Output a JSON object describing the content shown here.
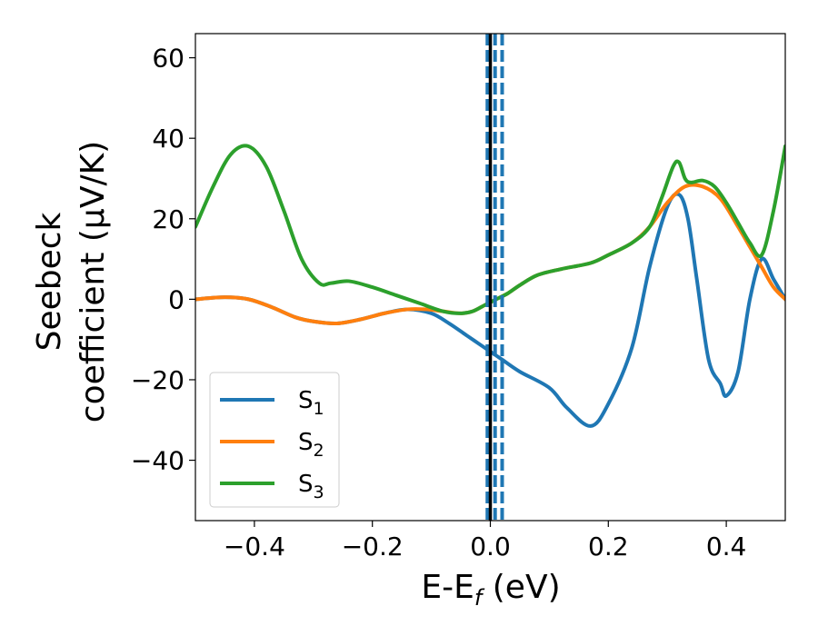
{
  "chart_data": {
    "type": "line",
    "xlabel": {
      "main": "E-E",
      "sub": "f",
      "unit": " (eV)"
    },
    "ylabel": {
      "line1": "Seebeck",
      "line2": "coefficient  (μV/K)"
    },
    "xlim": [
      -0.5,
      0.5
    ],
    "ylim": [
      -55,
      66
    ],
    "xticks": [
      -0.4,
      -0.2,
      0.0,
      0.2,
      0.4
    ],
    "xtick_labels": [
      "−0.4",
      "−0.2",
      "0.0",
      "0.2",
      "0.4"
    ],
    "yticks": [
      -40,
      -20,
      0,
      20,
      40,
      60
    ],
    "ytick_labels": [
      "−40",
      "−20",
      "0",
      "20",
      "40",
      "60"
    ],
    "grid": false,
    "legend_position": "lower-left",
    "vertical_lines": [
      {
        "x": 0.0,
        "style": "solid",
        "color": "#000000"
      },
      {
        "x": -0.005,
        "style": "dashed",
        "color": "#1f77b4"
      },
      {
        "x": 0.008,
        "style": "dashed",
        "color": "#1f77b4"
      },
      {
        "x": 0.02,
        "style": "dashed",
        "color": "#1f77b4"
      }
    ],
    "series": [
      {
        "name": "S",
        "sub": "1",
        "color": "#1f77b4",
        "x": [
          -0.5,
          -0.45,
          -0.41,
          -0.37,
          -0.33,
          -0.3,
          -0.26,
          -0.22,
          -0.18,
          -0.14,
          -0.1,
          -0.07,
          -0.04,
          -0.02,
          0.0,
          0.02,
          0.05,
          0.1,
          0.13,
          0.17,
          0.2,
          0.24,
          0.27,
          0.3,
          0.32,
          0.335,
          0.35,
          0.37,
          0.39,
          0.4,
          0.42,
          0.44,
          0.46,
          0.48,
          0.5
        ],
        "y": [
          0,
          0.5,
          0,
          -2,
          -4.5,
          -5.5,
          -6,
          -5,
          -3.5,
          -2.5,
          -3.5,
          -6,
          -9,
          -11,
          -13,
          -15,
          -18,
          -22,
          -27,
          -31.5,
          -26,
          -12,
          8,
          23,
          26,
          20,
          5,
          -15,
          -21,
          -24,
          -18,
          0,
          10,
          5,
          0
        ]
      },
      {
        "name": "S",
        "sub": "2",
        "color": "#ff7f0e",
        "x": [
          -0.5,
          -0.45,
          -0.41,
          -0.37,
          -0.33,
          -0.3,
          -0.26,
          -0.22,
          -0.18,
          -0.14,
          -0.11,
          -0.08,
          -0.05,
          -0.03,
          -0.01,
          0.01,
          0.03,
          0.05,
          0.08,
          0.12,
          0.17,
          0.2,
          0.24,
          0.27,
          0.3,
          0.33,
          0.36,
          0.39,
          0.42,
          0.44,
          0.46,
          0.48,
          0.5
        ],
        "y": [
          0,
          0.5,
          0,
          -2,
          -4.5,
          -5.5,
          -6,
          -5,
          -3.5,
          -2.5,
          -2.5,
          -3,
          -3.5,
          -3,
          -1.5,
          0,
          1.5,
          3.5,
          6,
          7.5,
          9,
          11,
          14,
          18,
          24,
          28,
          28,
          25,
          18,
          13,
          8,
          3,
          0
        ]
      },
      {
        "name": "S",
        "sub": "3",
        "color": "#2ca02c",
        "x": [
          -0.5,
          -0.47,
          -0.44,
          -0.41,
          -0.38,
          -0.35,
          -0.32,
          -0.29,
          -0.27,
          -0.24,
          -0.2,
          -0.16,
          -0.12,
          -0.08,
          -0.05,
          -0.03,
          -0.01,
          0.01,
          0.03,
          0.05,
          0.08,
          0.12,
          0.17,
          0.2,
          0.24,
          0.27,
          0.29,
          0.31,
          0.32,
          0.33,
          0.34,
          0.36,
          0.38,
          0.4,
          0.42,
          0.44,
          0.46,
          0.48,
          0.5
        ],
        "y": [
          18,
          28,
          36,
          38,
          33,
          22,
          10,
          4,
          4,
          4.5,
          3,
          1,
          -1,
          -3,
          -3.5,
          -3,
          -1.5,
          0,
          1.5,
          3.5,
          6,
          7.5,
          9,
          11,
          14,
          18,
          25,
          33,
          34,
          30,
          29,
          29.5,
          28,
          24,
          19,
          14,
          11,
          22,
          38
        ]
      }
    ]
  }
}
